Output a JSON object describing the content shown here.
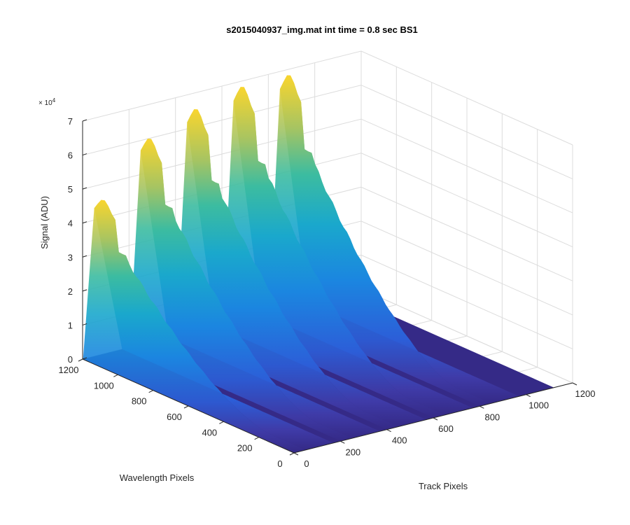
{
  "chart_data": {
    "type": "surface",
    "title": "s2015040937_img.mat int time = 0.8 sec   BS1",
    "xlabel": "Track Pixels",
    "ylabel": "Wavelength Pixels",
    "zlabel": "Signal (ADU)",
    "z_exponent_label": "× 10",
    "z_exponent_power": "4",
    "xlim": [
      0,
      1200
    ],
    "ylim": [
      0,
      1200
    ],
    "zlim": [
      0,
      70000
    ],
    "x_ticks": [
      "0",
      "200",
      "400",
      "600",
      "800",
      "1000",
      "1200"
    ],
    "y_ticks": [
      "0",
      "200",
      "400",
      "600",
      "800",
      "1000",
      "1200"
    ],
    "z_ticks": [
      "0",
      "1",
      "2",
      "3",
      "4",
      "5",
      "6",
      "7"
    ],
    "grid": true,
    "colormap": "parula",
    "colors": {
      "low": "#352a87",
      "mid": "#1d8ed8",
      "teal": "#2ab9a8",
      "high": "#f9d52e"
    },
    "series": [
      {
        "track_center_x": 0,
        "peak_signal": 45000
      },
      {
        "track_center_x": 200,
        "peak_signal": 59000
      },
      {
        "track_center_x": 400,
        "peak_signal": 64000
      },
      {
        "track_center_x": 600,
        "peak_signal": 67000
      },
      {
        "track_center_x": 800,
        "peak_signal": 67000
      }
    ]
  }
}
